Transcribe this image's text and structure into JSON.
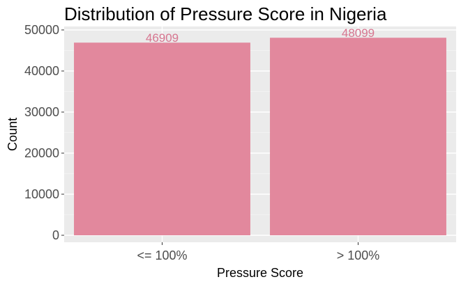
{
  "chart_data": {
    "type": "bar",
    "title": "Distribution of Pressure Score in Nigeria",
    "xlabel": "Pressure Score",
    "ylabel": "Count",
    "categories": [
      "<= 100%",
      "> 100%"
    ],
    "values": [
      46909,
      48099
    ],
    "data_labels": [
      "46909",
      "48099"
    ],
    "ylim": [
      0,
      50000
    ],
    "yticks": [
      0,
      10000,
      20000,
      30000,
      40000,
      50000
    ],
    "ytick_labels": [
      "0",
      "10000",
      "20000",
      "30000",
      "40000",
      "50000"
    ],
    "grid": true,
    "legend": "none",
    "colors": {
      "bar": "#e2889d",
      "label": "#d77690",
      "panel": "#ebebeb",
      "grid_major": "#ffffff",
      "grid_minor": "#f5f5f5",
      "tick_text": "#4d4d4d"
    }
  }
}
